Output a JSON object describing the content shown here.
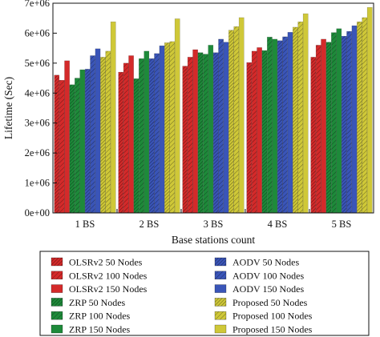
{
  "chart_data": {
    "type": "bar",
    "ylabel": "Lifetime (Sec)",
    "xlabel": "Base stations count",
    "ylim": [
      0,
      7000000
    ],
    "yticks": [
      {
        "value": 0,
        "label": "0e+00"
      },
      {
        "value": 1000000,
        "label": "1e+06"
      },
      {
        "value": 2000000,
        "label": "2e+06"
      },
      {
        "value": 3000000,
        "label": "3e+06"
      },
      {
        "value": 4000000,
        "label": "4e+06"
      },
      {
        "value": 5000000,
        "label": "5e+06"
      },
      {
        "value": 6000000,
        "label": "6e+06"
      },
      {
        "value": 7000000,
        "label": "7e+06"
      }
    ],
    "categories": [
      "1 BS",
      "2 BS",
      "3 BS",
      "4 BS",
      "5 BS"
    ],
    "grid": false,
    "legend_position": "bottom",
    "series": [
      {
        "name": "OLSRv2 50 Nodes",
        "color": "#d42a2a",
        "pattern": "diag-dense",
        "values": [
          4600000,
          4700000,
          4900000,
          5020000,
          5200000
        ]
      },
      {
        "name": "OLSRv2 100 Nodes",
        "color": "#d42a2a",
        "pattern": "diag",
        "values": [
          4430000,
          5000000,
          5200000,
          5400000,
          5600000
        ]
      },
      {
        "name": "OLSRv2 150 Nodes",
        "color": "#d42a2a",
        "pattern": "none",
        "values": [
          5080000,
          5250000,
          5450000,
          5520000,
          5800000
        ]
      },
      {
        "name": "ZRP 50 Nodes",
        "color": "#1e8a3a",
        "pattern": "diag-dense",
        "values": [
          4280000,
          4480000,
          5350000,
          5420000,
          5700000
        ]
      },
      {
        "name": "ZRP 100 Nodes",
        "color": "#1e8a3a",
        "pattern": "diag",
        "values": [
          4500000,
          5150000,
          5300000,
          5870000,
          6020000
        ]
      },
      {
        "name": "ZRP 150 Nodes",
        "color": "#1e8a3a",
        "pattern": "none",
        "values": [
          4780000,
          5400000,
          5600000,
          5800000,
          6150000
        ]
      },
      {
        "name": "AODV 50 Nodes",
        "color": "#3a55b8",
        "pattern": "diag-dense",
        "values": [
          4800000,
          5150000,
          5350000,
          5750000,
          5900000
        ]
      },
      {
        "name": "AODV 100 Nodes",
        "color": "#3a55b8",
        "pattern": "diag",
        "values": [
          5250000,
          5320000,
          5800000,
          5880000,
          6060000
        ]
      },
      {
        "name": "AODV 150 Nodes",
        "color": "#3a55b8",
        "pattern": "none",
        "values": [
          5480000,
          5580000,
          5700000,
          6030000,
          6250000
        ]
      },
      {
        "name": "Proposed 50 Nodes",
        "color": "#cfc838",
        "pattern": "diag-dense",
        "values": [
          5200000,
          5680000,
          6100000,
          6200000,
          6380000
        ]
      },
      {
        "name": "Proposed 100 Nodes",
        "color": "#cfc838",
        "pattern": "diag",
        "values": [
          5400000,
          5720000,
          6220000,
          6380000,
          6520000
        ]
      },
      {
        "name": "Proposed 150 Nodes",
        "color": "#cfc838",
        "pattern": "none",
        "values": [
          6380000,
          6480000,
          6520000,
          6650000,
          6860000
        ]
      }
    ]
  }
}
